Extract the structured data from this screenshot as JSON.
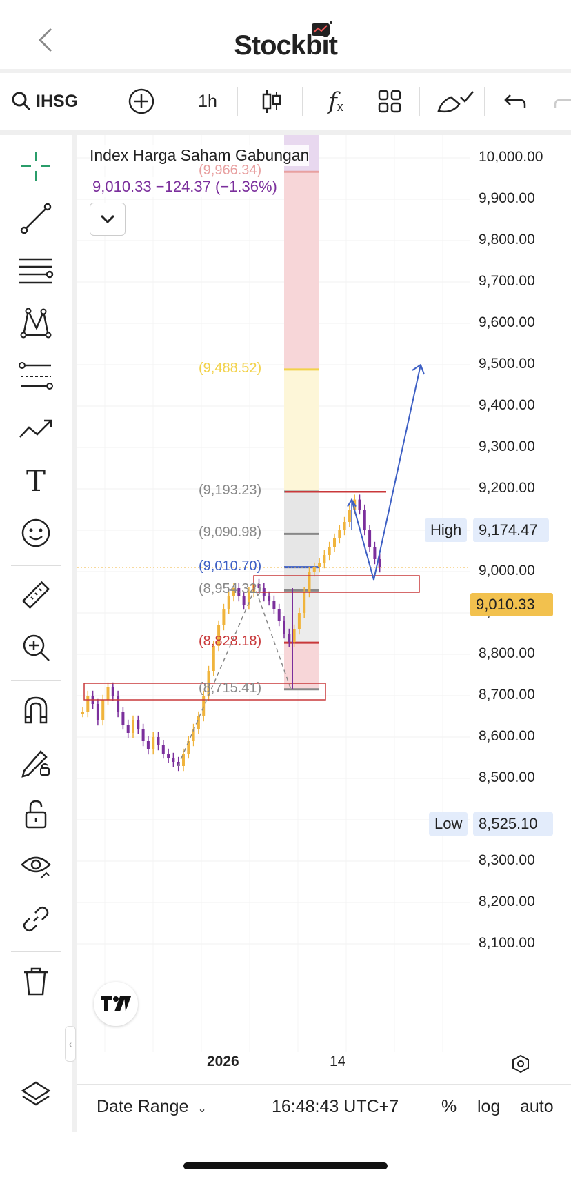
{
  "header": {
    "brand": "Stockbit"
  },
  "toolbar": {
    "symbol": "IHSG",
    "interval": "1h"
  },
  "legend": {
    "title": "Index Harga Saham Gabungan",
    "value_line": "9,010.33  −124.37 (−1.36%)"
  },
  "price_axis": [
    "10,000.00",
    "9,900.00",
    "9,800.00",
    "9,700.00",
    "9,600.00",
    "9,500.00",
    "9,400.00",
    "9,300.00",
    "9,200.00",
    "9,100.00",
    "9,000.00",
    "8,900.00",
    "8,800.00",
    "8,700.00",
    "8,600.00",
    "8,500.00",
    "8,400.00",
    "8,300.00",
    "8,200.00",
    "8,100.00"
  ],
  "tags": {
    "high_label": "High",
    "high_value": "9,174.47",
    "current_value": "9,010.33",
    "low_label": "Low",
    "low_value": "8,525.10"
  },
  "fib_levels": [
    {
      "label": "(9,966.34)",
      "value": 9966.34,
      "color": "#e8a0a0"
    },
    {
      "label": "(9,488.52)",
      "value": 9488.52,
      "color": "#f2d24a"
    },
    {
      "label": "(9,193.23)",
      "value": 9193.23,
      "color": "#888888"
    },
    {
      "label": "(9,090.98)",
      "value": 9090.98,
      "color": "#888888"
    },
    {
      "label": "(9,010.70)",
      "value": 9010.7,
      "color": "#3d5fc4"
    },
    {
      "label": "(8,954.32)",
      "value": 8954.32,
      "color": "#888888"
    },
    {
      "label": "(8,828.18)",
      "value": 8828.18,
      "color": "#c9383a"
    },
    {
      "label": "(8,715.41)",
      "value": 8715.41,
      "color": "#888888"
    }
  ],
  "x_axis": {
    "year": "2026",
    "day": "14"
  },
  "bottom": {
    "date_range": "Date Range",
    "time": "16:48:43 UTC+7",
    "percent": "%",
    "log": "log",
    "auto": "auto"
  },
  "colors": {
    "accent": "#7b2f9c",
    "candle_up": "#f0b43c",
    "candle_down": "#7b2f9c",
    "current_tag": "#f2c14e",
    "tag_bg": "#e3ecfb"
  },
  "chart_data": {
    "type": "candlestick",
    "ylim": [
      8050,
      10050
    ],
    "close_series": [
      8660,
      8700,
      8680,
      8640,
      8690,
      8720,
      8700,
      8660,
      8630,
      8610,
      8640,
      8620,
      8590,
      8570,
      8600,
      8580,
      8560,
      8550,
      8540,
      8530,
      8560,
      8590,
      8620,
      8650,
      8700,
      8760,
      8820,
      8870,
      8910,
      8940,
      8960,
      8940,
      8920,
      8950,
      8970,
      8960,
      8940,
      8930,
      8910,
      8880,
      8850,
      8830,
      8860,
      8900,
      8950,
      9000,
      9010,
      9020,
      9040,
      9060,
      9080,
      9100,
      9120,
      9150,
      9174,
      9150,
      9100,
      9060,
      9030,
      9010
    ],
    "selected_price": 9010.33,
    "projection_target": 9500
  }
}
